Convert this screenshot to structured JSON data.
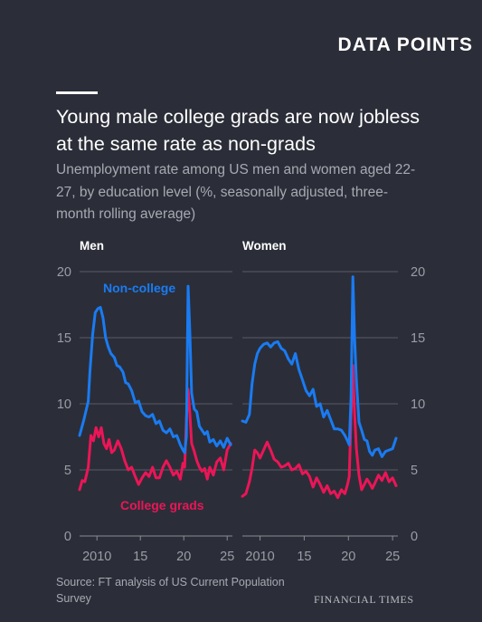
{
  "header": {
    "brand": "DATA POINTS",
    "title": "Young male college grads are now jobless at the same rate as non-grads",
    "subtitle": "Unemployment rate among US men and women aged 22-27, by education level (%, seasonally adjusted, three-month rolling average)"
  },
  "footer": {
    "source": "Source: FT analysis of US Current Population Survey",
    "logo": "FINANCIAL TIMES"
  },
  "colors": {
    "background": "#2b2e38",
    "non_college": "#1a7bf2",
    "college": "#ec1557",
    "grid": "#595c66",
    "axis_text": "#9b9da6"
  },
  "chart_data": [
    {
      "type": "line",
      "title": "Men",
      "ylim": [
        0,
        20
      ],
      "yticks": [
        0,
        5,
        10,
        15,
        20
      ],
      "xlim": [
        2008,
        2025.6
      ],
      "xtick_values": [
        2010,
        2015,
        2020,
        2025
      ],
      "xtick_labels": [
        "2010",
        "15",
        "20",
        "25"
      ],
      "grid": true,
      "annotations": [
        "Non-college",
        "College grads"
      ],
      "series": [
        {
          "name": "Non-college",
          "color": "#1a7bf2",
          "x": [
            2008.0,
            2008.5,
            2009.0,
            2009.2,
            2009.5,
            2009.8,
            2010.1,
            2010.4,
            2010.7,
            2011.0,
            2011.3,
            2011.6,
            2012.0,
            2012.3,
            2012.6,
            2013.0,
            2013.3,
            2013.6,
            2014.0,
            2014.4,
            2014.8,
            2015.2,
            2015.6,
            2016.0,
            2016.4,
            2016.8,
            2017.2,
            2017.6,
            2018.0,
            2018.4,
            2018.8,
            2019.2,
            2019.6,
            2019.9,
            2020.1,
            2020.3,
            2020.5,
            2020.7,
            2020.9,
            2021.2,
            2021.5,
            2021.8,
            2022.1,
            2022.4,
            2022.7,
            2023.0,
            2023.4,
            2023.8,
            2024.2,
            2024.6,
            2025.0,
            2025.4
          ],
          "values": [
            7.6,
            8.8,
            10.2,
            12.5,
            15.2,
            16.9,
            17.2,
            17.3,
            16.5,
            15.0,
            14.3,
            13.8,
            13.5,
            12.9,
            12.8,
            12.4,
            11.6,
            11.5,
            11.0,
            10.1,
            10.2,
            9.4,
            9.1,
            9.0,
            9.2,
            8.5,
            8.7,
            8.0,
            7.8,
            8.1,
            7.5,
            7.6,
            6.9,
            6.5,
            6.3,
            7.5,
            18.9,
            15.5,
            10.8,
            9.6,
            9.4,
            8.3,
            8.0,
            7.7,
            7.9,
            7.1,
            7.3,
            6.8,
            7.2,
            6.7,
            7.4,
            6.9
          ]
        },
        {
          "name": "College grads",
          "color": "#ec1557",
          "x": [
            2008.0,
            2008.3,
            2008.6,
            2009.0,
            2009.3,
            2009.6,
            2009.9,
            2010.2,
            2010.5,
            2010.8,
            2011.1,
            2011.4,
            2011.7,
            2012.0,
            2012.4,
            2012.8,
            2013.2,
            2013.6,
            2014.0,
            2014.4,
            2014.8,
            2015.2,
            2015.6,
            2016.0,
            2016.4,
            2016.8,
            2017.2,
            2017.6,
            2018.0,
            2018.4,
            2018.8,
            2019.2,
            2019.6,
            2019.9,
            2020.1,
            2020.3,
            2020.5,
            2020.7,
            2020.9,
            2021.2,
            2021.5,
            2021.8,
            2022.1,
            2022.4,
            2022.7,
            2023.0,
            2023.4,
            2023.8,
            2024.2,
            2024.6,
            2025.0,
            2025.4
          ],
          "values": [
            3.5,
            4.2,
            4.1,
            5.2,
            7.6,
            7.2,
            8.2,
            7.5,
            8.2,
            7.0,
            6.6,
            7.3,
            6.3,
            6.5,
            7.2,
            6.6,
            5.7,
            5.0,
            5.2,
            4.5,
            3.9,
            4.4,
            4.8,
            4.5,
            5.2,
            4.4,
            4.4,
            5.2,
            5.7,
            5.2,
            4.6,
            4.9,
            4.3,
            5.5,
            5.2,
            8.8,
            11.1,
            9.3,
            7.0,
            6.4,
            5.7,
            5.2,
            4.9,
            5.1,
            4.3,
            5.2,
            4.6,
            5.6,
            5.9,
            5.0,
            6.5,
            7.0
          ]
        }
      ]
    },
    {
      "type": "line",
      "title": "Women",
      "ylim": [
        0,
        20
      ],
      "yticks": [
        0,
        5,
        10,
        15,
        20
      ],
      "xlim": [
        2008,
        2025.6
      ],
      "xtick_values": [
        2010,
        2015,
        2020,
        2025
      ],
      "xtick_labels": [
        "2010",
        "15",
        "20",
        "25"
      ],
      "grid": true,
      "series": [
        {
          "name": "Non-college",
          "color": "#1a7bf2",
          "x": [
            2008.0,
            2008.4,
            2008.8,
            2009.1,
            2009.4,
            2009.7,
            2010.0,
            2010.4,
            2010.8,
            2011.2,
            2011.6,
            2012.0,
            2012.4,
            2012.8,
            2013.2,
            2013.6,
            2014.0,
            2014.4,
            2014.8,
            2015.2,
            2015.6,
            2016.0,
            2016.4,
            2016.8,
            2017.2,
            2017.6,
            2018.0,
            2018.4,
            2018.8,
            2019.2,
            2019.6,
            2019.9,
            2020.1,
            2020.3,
            2020.5,
            2020.7,
            2020.9,
            2021.2,
            2021.5,
            2021.8,
            2022.1,
            2022.4,
            2022.7,
            2023.0,
            2023.4,
            2023.8,
            2024.2,
            2024.6,
            2025.0,
            2025.4
          ],
          "values": [
            8.7,
            8.6,
            9.2,
            11.5,
            13.0,
            13.8,
            14.2,
            14.5,
            14.6,
            14.3,
            14.6,
            14.7,
            14.2,
            14.0,
            13.4,
            13.0,
            13.8,
            12.6,
            11.8,
            11.0,
            10.6,
            11.1,
            9.8,
            10.0,
            9.0,
            9.5,
            8.8,
            8.1,
            8.1,
            8.0,
            7.6,
            7.2,
            6.9,
            10.5,
            19.6,
            15.0,
            11.8,
            8.6,
            8.0,
            7.3,
            7.2,
            6.4,
            6.1,
            6.5,
            6.6,
            6.0,
            6.4,
            6.5,
            6.6,
            7.4
          ]
        },
        {
          "name": "College grads",
          "color": "#ec1557",
          "x": [
            2008.0,
            2008.4,
            2008.8,
            2009.1,
            2009.4,
            2009.7,
            2010.0,
            2010.4,
            2010.8,
            2011.2,
            2011.6,
            2012.0,
            2012.4,
            2012.8,
            2013.2,
            2013.6,
            2014.0,
            2014.4,
            2014.8,
            2015.2,
            2015.6,
            2016.0,
            2016.4,
            2016.8,
            2017.2,
            2017.6,
            2018.0,
            2018.4,
            2018.8,
            2019.2,
            2019.6,
            2019.9,
            2020.1,
            2020.3,
            2020.5,
            2020.7,
            2020.9,
            2021.2,
            2021.5,
            2021.8,
            2022.1,
            2022.4,
            2022.7,
            2023.0,
            2023.4,
            2023.8,
            2024.2,
            2024.6,
            2025.0,
            2025.4
          ],
          "values": [
            3.0,
            3.2,
            4.1,
            5.1,
            6.5,
            6.3,
            5.9,
            6.5,
            7.1,
            6.5,
            5.8,
            5.6,
            5.2,
            5.3,
            5.5,
            5.0,
            5.1,
            5.4,
            4.7,
            4.9,
            4.5,
            3.7,
            4.4,
            3.9,
            3.3,
            3.8,
            3.2,
            3.4,
            2.9,
            3.5,
            3.2,
            3.9,
            4.5,
            9.0,
            12.9,
            9.3,
            6.6,
            4.6,
            3.5,
            3.9,
            4.3,
            4.0,
            3.6,
            4.0,
            4.6,
            4.2,
            4.8,
            4.1,
            4.4,
            3.8
          ]
        }
      ]
    }
  ]
}
